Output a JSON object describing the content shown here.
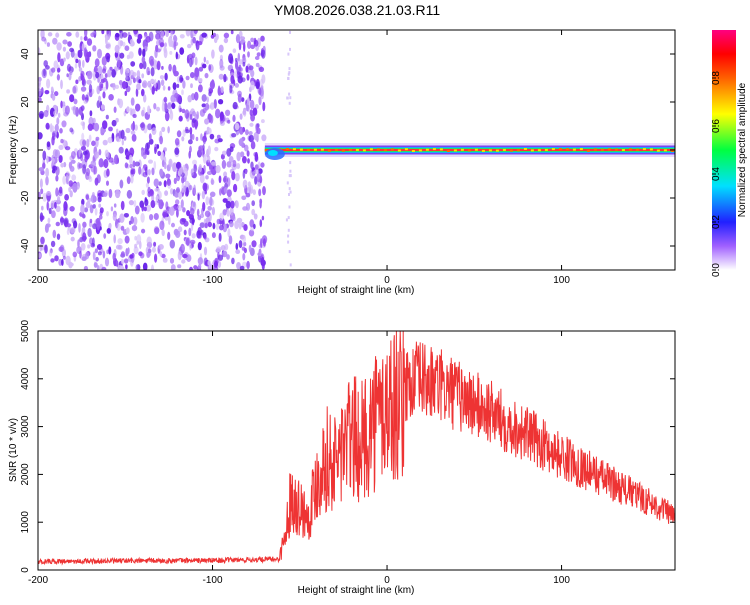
{
  "title": "YM08.2026.038.21.03.R11",
  "chart_data": [
    {
      "type": "heatmap",
      "xlabel": "Height of straight line (km)",
      "ylabel": "Frequency (Hz)",
      "xlim": [
        -200,
        165
      ],
      "ylim": [
        -50,
        50
      ],
      "x_ticks": [
        -200,
        -100,
        0,
        100
      ],
      "y_ticks": [
        -40,
        -20,
        0,
        20,
        40
      ],
      "noise_region_x": [
        -200,
        -70
      ],
      "signal_band_x": [
        -70,
        165
      ],
      "signal_center_hz": 0,
      "colorbar": {
        "label": "Normalized spectral amplitude",
        "range": [
          0,
          1
        ],
        "ticks": [
          0.0,
          0.2,
          0.4,
          0.6,
          0.8
        ],
        "tick_labels": [
          "0.0",
          "0.2",
          "0.4",
          "0.6",
          "0.8"
        ]
      }
    },
    {
      "type": "line",
      "xlabel": "Height of straight line (km)",
      "ylabel": "SNR (10 * v/v)",
      "xlim": [
        -200,
        165
      ],
      "ylim": [
        0,
        5000
      ],
      "x_ticks": [
        -200,
        -100,
        0,
        100
      ],
      "y_ticks": [
        0,
        1000,
        2000,
        3000,
        4000,
        5000
      ],
      "line_color": "#ee3333",
      "series": [
        {
          "name": "SNR",
          "x": [
            -200,
            -150,
            -100,
            -70,
            -62,
            -58,
            -55,
            -50,
            -45,
            -40,
            -35,
            -30,
            -25,
            -20,
            -15,
            -10,
            -5,
            0,
            5,
            10,
            15,
            20,
            25,
            30,
            40,
            50,
            60,
            70,
            80,
            90,
            100,
            110,
            120,
            130,
            140,
            150,
            160,
            165
          ],
          "y": [
            180,
            190,
            200,
            220,
            230,
            900,
            1800,
            1500,
            1300,
            2200,
            2700,
            2500,
            3000,
            3200,
            3000,
            3400,
            3700,
            3850,
            4000,
            4100,
            4150,
            4200,
            4100,
            4050,
            3850,
            3650,
            3450,
            3200,
            3000,
            2750,
            2500,
            2300,
            2100,
            1900,
            1700,
            1500,
            1300,
            1150
          ]
        }
      ]
    }
  ]
}
